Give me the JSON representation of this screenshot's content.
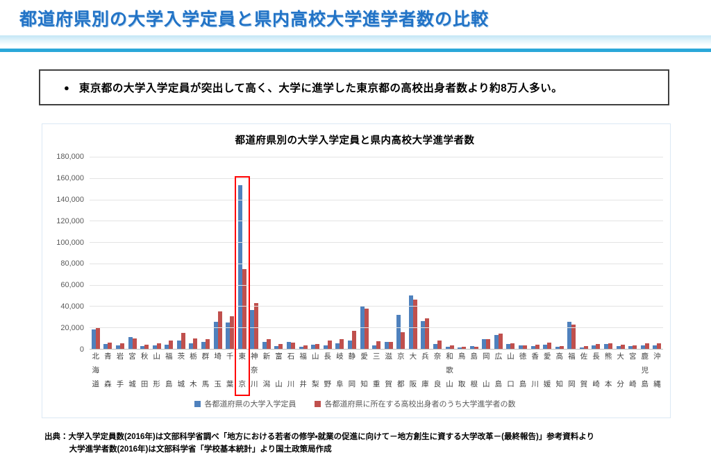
{
  "page": {
    "title": "都道府県別の大学入学定員と県内高校大学進学者数の比較",
    "bullet_glyph": "●",
    "callout": "東京都の大学入学定員が突出して高く、大学に進学した東京都の高校出身者数より約8万人多い。"
  },
  "chart_data": {
    "type": "bar",
    "title": "都道府県別の大学入学定員と県内高校大学進学者数",
    "categories": [
      "北海道",
      "青森",
      "岩手",
      "宮城",
      "秋田",
      "山形",
      "福島",
      "茨城",
      "栃木",
      "群馬",
      "埼玉",
      "千葉",
      "東京",
      "神奈川",
      "新潟",
      "富山",
      "石川",
      "福井",
      "山梨",
      "長野",
      "岐阜",
      "静岡",
      "愛知",
      "三重",
      "滋賀",
      "京都",
      "大阪",
      "兵庫",
      "奈良",
      "和歌山",
      "鳥取",
      "島根",
      "岡山",
      "広島",
      "山口",
      "徳島",
      "香川",
      "愛媛",
      "高知",
      "福岡",
      "佐賀",
      "長崎",
      "熊本",
      "大分",
      "宮崎",
      "鹿児島",
      "沖縄"
    ],
    "series": [
      {
        "name": "各都道府県の大学入学定員",
        "color": "#4F81BD",
        "values": [
          18500,
          4400,
          3100,
          11300,
          2600,
          3000,
          4100,
          7700,
          5200,
          6800,
          25500,
          24800,
          153500,
          36500,
          6500,
          2800,
          6300,
          2200,
          4200,
          3200,
          5000,
          8000,
          39500,
          3000,
          6500,
          32000,
          49900,
          26100,
          4800,
          1700,
          1500,
          2300,
          8900,
          13200,
          4300,
          3000,
          2400,
          3700,
          1700,
          25300,
          1300,
          3500,
          4500,
          2800,
          2400,
          3200,
          3200
        ]
      },
      {
        "name": "各都道府県に所在する高校出身者のうち大学進学者の数",
        "color": "#C0504D",
        "values": [
          20200,
          5700,
          5100,
          9900,
          4000,
          4900,
          7500,
          14900,
          9500,
          9200,
          35200,
          30500,
          75000,
          42600,
          9300,
          4300,
          5600,
          3500,
          4600,
          7600,
          8900,
          17100,
          38000,
          7100,
          6700,
          15500,
          46400,
          28700,
          7800,
          3500,
          2200,
          2000,
          9300,
          14300,
          5000,
          3200,
          4200,
          5800,
          2600,
          22700,
          2800,
          4500,
          5200,
          3900,
          3200,
          5000,
          5400
        ]
      }
    ],
    "ylim": [
      0,
      180000
    ],
    "ytick_interval": 20000,
    "ytick_labels": [
      "0",
      "20,000",
      "40,000",
      "60,000",
      "80,000",
      "100,000",
      "120,000",
      "140,000",
      "160,000",
      "180,000"
    ],
    "grid": true,
    "legend_position": "bottom",
    "highlight": {
      "category": "東京",
      "color": "#FF0000"
    }
  },
  "source": {
    "line1": "出典：大学入学定員数(2016年)は文部科学省調べ「地方における若者の修学・就業の促進に向けて－地方創生に資する大学改革－(最終報告)」参考資料より",
    "line2": "大学進学者数(2016年)は文部科学省「学校基本統計」より国土政策局作成"
  }
}
